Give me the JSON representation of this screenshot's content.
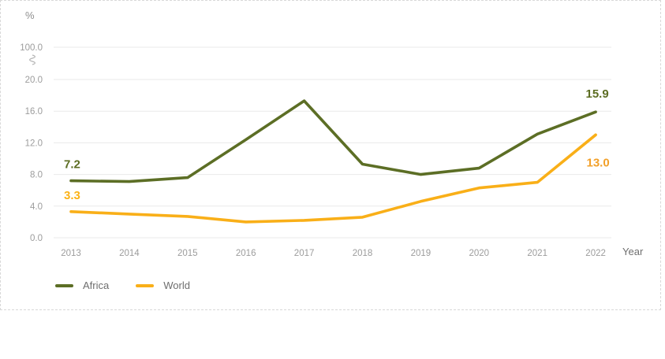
{
  "chart_data": {
    "type": "line",
    "title": "",
    "unit_label": "%",
    "xlabel": "Year",
    "categories": [
      "2013",
      "2014",
      "2015",
      "2016",
      "2017",
      "2018",
      "2019",
      "2020",
      "2021",
      "2022"
    ],
    "yticks": [
      "0.0",
      "4.0",
      "8.0",
      "12.0",
      "16.0",
      "20.0"
    ],
    "broken_axis_tick": "100.0",
    "ylim_visible": [
      0,
      20
    ],
    "grid": true,
    "legend_position": "bottom-left",
    "series": [
      {
        "name": "Africa",
        "color": "#5c6e25",
        "values": [
          7.2,
          7.1,
          7.6,
          12.4,
          17.3,
          9.3,
          8.0,
          8.8,
          13.1,
          15.9
        ]
      },
      {
        "name": "World",
        "color": "#f9af18",
        "values": [
          3.3,
          3.0,
          2.7,
          2.0,
          2.2,
          2.6,
          4.6,
          6.3,
          7.0,
          13.0
        ]
      }
    ],
    "annotations": [
      {
        "text": "7.2",
        "color": "#5c6d22",
        "category": "2013",
        "value": 7.2,
        "placement": "above-start"
      },
      {
        "text": "15.9",
        "color": "#5c6d22",
        "category": "2022",
        "value": 15.9,
        "placement": "above-end"
      },
      {
        "text": "3.3",
        "color": "#fbb217",
        "category": "2013",
        "value": 3.3,
        "placement": "above-start"
      },
      {
        "text": "13.0",
        "color": "#f2a029",
        "category": "2022",
        "value": 13.0,
        "placement": "below-end"
      }
    ],
    "legend": [
      {
        "label": "Africa",
        "color": "#5c6e25"
      },
      {
        "label": "World",
        "color": "#f9af18"
      }
    ]
  }
}
